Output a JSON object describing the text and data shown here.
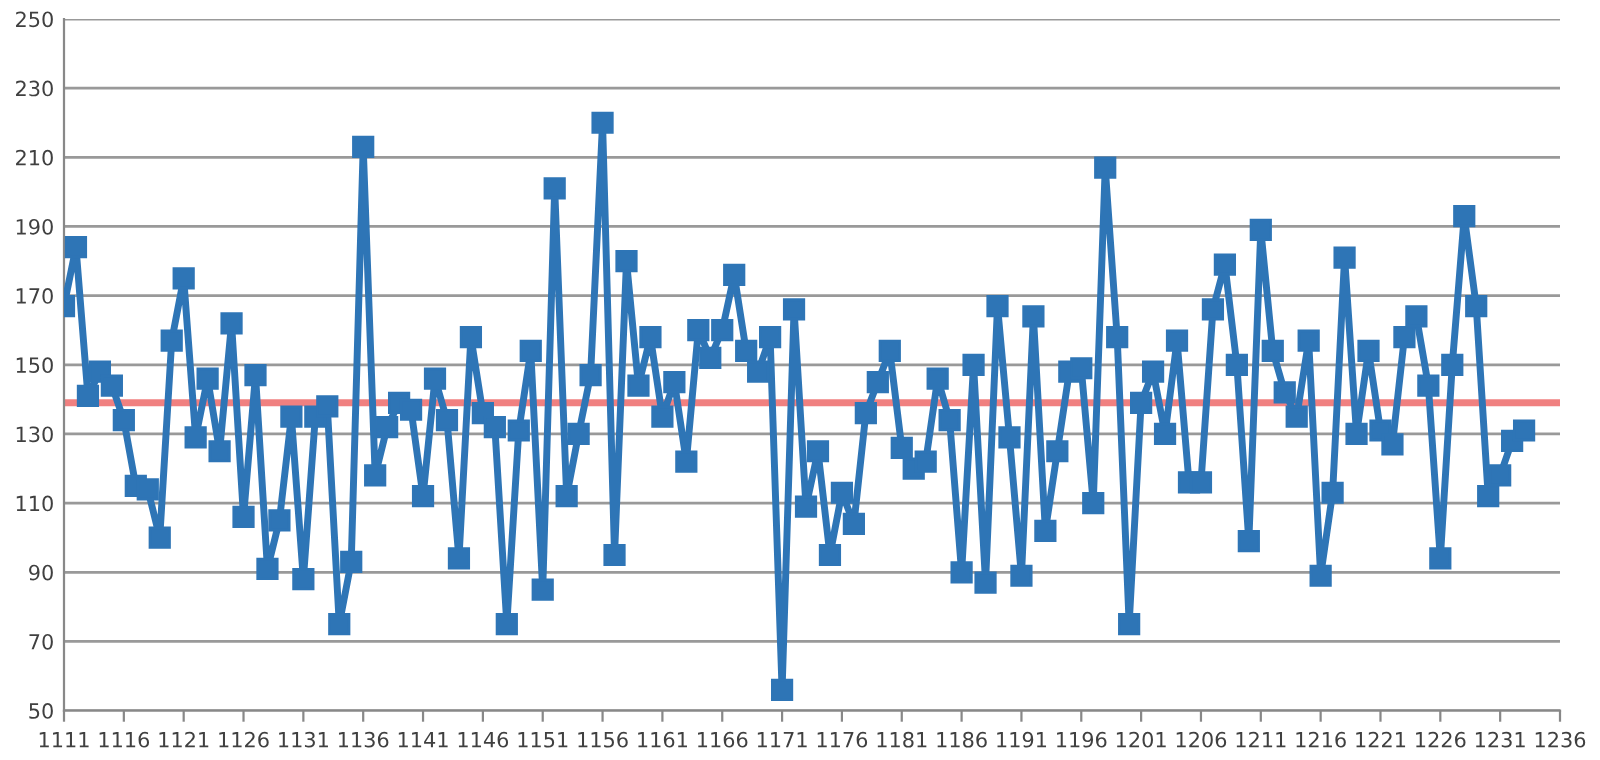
{
  "chart_data": {
    "type": "line",
    "x": [
      1111,
      1112,
      1113,
      1114,
      1115,
      1116,
      1117,
      1118,
      1119,
      1120,
      1121,
      1122,
      1123,
      1124,
      1125,
      1126,
      1127,
      1128,
      1129,
      1130,
      1131,
      1132,
      1133,
      1134,
      1135,
      1136,
      1137,
      1138,
      1139,
      1140,
      1141,
      1142,
      1143,
      1144,
      1145,
      1146,
      1147,
      1148,
      1149,
      1150,
      1151,
      1152,
      1153,
      1154,
      1155,
      1156,
      1157,
      1158,
      1159,
      1160,
      1161,
      1162,
      1163,
      1164,
      1165,
      1166,
      1167,
      1168,
      1169,
      1170,
      1171,
      1172,
      1173,
      1174,
      1175,
      1176,
      1177,
      1178,
      1179,
      1180,
      1181,
      1182,
      1183,
      1184,
      1185,
      1186,
      1187,
      1188,
      1189,
      1190,
      1191,
      1192,
      1193,
      1194,
      1195,
      1196,
      1197,
      1198,
      1199,
      1200,
      1201,
      1202,
      1203,
      1204,
      1205,
      1206,
      1207,
      1208,
      1209,
      1210,
      1211,
      1212,
      1213,
      1214,
      1215,
      1216,
      1217,
      1218,
      1219,
      1220,
      1221,
      1222,
      1223,
      1224,
      1225,
      1226,
      1227,
      1228,
      1229,
      1230,
      1231,
      1232,
      1233
    ],
    "series": [
      {
        "color": "#2e75b6",
        "values": [
          167,
          184,
          141,
          148,
          144,
          134,
          115,
          114,
          100,
          157,
          175,
          129,
          146,
          125,
          162,
          106,
          147,
          91,
          105,
          135,
          88,
          135,
          138,
          75,
          93,
          213,
          118,
          132,
          139,
          137,
          112,
          146,
          134,
          94,
          158,
          136,
          132,
          75,
          131,
          154,
          85,
          201,
          112,
          130,
          147,
          220,
          95,
          180,
          144,
          158,
          135,
          145,
          122,
          160,
          152,
          160,
          176,
          154,
          148,
          158,
          56,
          166,
          109,
          125,
          95,
          113,
          104,
          136,
          145,
          154,
          126,
          120,
          122,
          146,
          134,
          90,
          150,
          87,
          167,
          129,
          89,
          164,
          102,
          125,
          148,
          149,
          110,
          207,
          158,
          75,
          139,
          148,
          130,
          157,
          116,
          116,
          166,
          179,
          150,
          99,
          189,
          154,
          142,
          135,
          157,
          89,
          113,
          181,
          130,
          154,
          131,
          127,
          158,
          164,
          144,
          94,
          150,
          193,
          167,
          112,
          118,
          128,
          131
        ]
      }
    ],
    "xlim": [
      1111,
      1236
    ],
    "xticks": [
      1111,
      1116,
      1121,
      1126,
      1131,
      1136,
      1141,
      1146,
      1151,
      1156,
      1161,
      1166,
      1171,
      1176,
      1181,
      1186,
      1191,
      1196,
      1201,
      1206,
      1211,
      1216,
      1221,
      1226,
      1231,
      1236
    ],
    "ylim": [
      50,
      250
    ],
    "yticks": [
      50,
      70,
      90,
      110,
      130,
      150,
      170,
      190,
      210,
      230,
      250
    ],
    "ref_lines": [
      {
        "axis": "y",
        "value": 139,
        "color": "#f08080"
      }
    ],
    "grid": "y",
    "marker": "square",
    "line_style": "solid"
  }
}
